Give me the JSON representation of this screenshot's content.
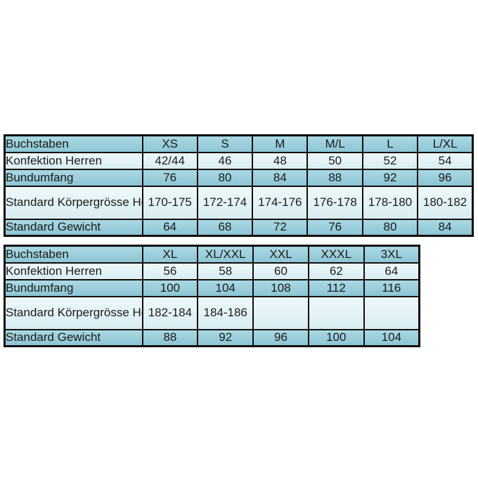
{
  "page": {
    "background": "#ffffff"
  },
  "colors": {
    "border": "#101010",
    "text": "#1b1b1b",
    "row_dark_top": "#aad8e2",
    "row_dark_bottom": "#8cc5d4",
    "row_light_top": "#eef8fa",
    "row_light_bottom": "#d9edf2"
  },
  "presentation": {
    "row_styles": [
      "dark",
      "light",
      "dark",
      "light tall",
      "dark"
    ],
    "label_col_width": 196
  },
  "chart_data": [
    {
      "type": "table",
      "rows": [
        {
          "label": "Buchstaben",
          "values": [
            "XS",
            "S",
            "M",
            "M/L",
            "L",
            "L/XL"
          ]
        },
        {
          "label": "Konfektion Herren",
          "values": [
            "42/44",
            "46",
            "48",
            "50",
            "52",
            "54"
          ]
        },
        {
          "label": "Bundumfang",
          "values": [
            "76",
            "80",
            "84",
            "88",
            "92",
            "96"
          ]
        },
        {
          "label": "Standard Körpergrösse Herren in cm",
          "values": [
            "170-175",
            "172-174",
            "174-176",
            "176-178",
            "178-180",
            "180-182"
          ]
        },
        {
          "label": "Standard Gewicht",
          "values": [
            "64",
            "68",
            "72",
            "76",
            "80",
            "84"
          ]
        }
      ]
    },
    {
      "type": "table",
      "rows": [
        {
          "label": "Buchstaben",
          "values": [
            "XL",
            "XL/XXL",
            "XXL",
            "XXXL",
            "3XL"
          ]
        },
        {
          "label": "Konfektion Herren",
          "values": [
            "56",
            "58",
            "60",
            "62",
            "64"
          ]
        },
        {
          "label": "Bundumfang",
          "values": [
            "100",
            "104",
            "108",
            "112",
            "116"
          ]
        },
        {
          "label": "Standard Körpergrösse Herren in cm",
          "values": [
            "182-184",
            "184-186",
            "",
            "",
            ""
          ]
        },
        {
          "label": "Standard Gewicht",
          "values": [
            "88",
            "92",
            "96",
            "100",
            "104"
          ]
        }
      ]
    }
  ]
}
